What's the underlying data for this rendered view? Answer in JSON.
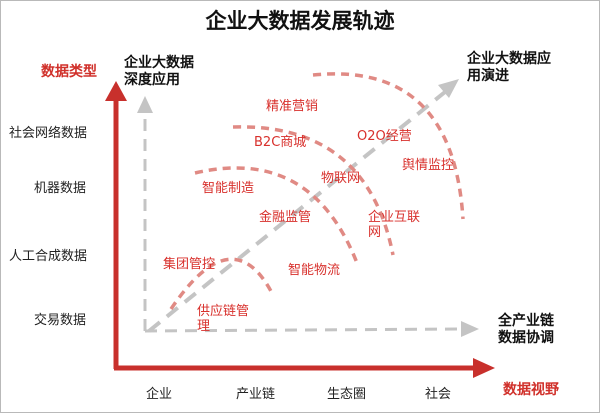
{
  "title": "企业大数据发展轨迹",
  "axes": {
    "y_title": "数据类型",
    "x_title": "数据视野",
    "y_categories": [
      "社会网络数据",
      "机器数据",
      "人工合成数据",
      "交易数据"
    ],
    "x_categories": [
      "企业",
      "产业链",
      "生态圈",
      "社会"
    ]
  },
  "directions": {
    "up_line1": "企业大数据",
    "up_line2": "深度应用",
    "diag_line1": "企业大数据应",
    "diag_line2": "用演进",
    "right_line1": "全产业链",
    "right_line2": "数据协调"
  },
  "applications": {
    "jingzhun": "精准营销",
    "b2c": "B2C商城",
    "o2o": "O2O经营",
    "yuqing": "舆情监控",
    "zhineng_zhizao": "智能制造",
    "wulianwang": "物联网",
    "jinrong": "金融监管",
    "qiye_hulian_1": "企业互联",
    "qiye_hulian_2": "网",
    "jituan": "集团管控",
    "zhineng_wuliu": "智能物流",
    "gongyinglian_1": "供应链管",
    "gongyinglian_2": "理"
  },
  "colors": {
    "axis": "#c8302c",
    "arc": "#e08a84",
    "dashed_arrow": "#c4c4c4",
    "app_text": "#d8302c"
  }
}
